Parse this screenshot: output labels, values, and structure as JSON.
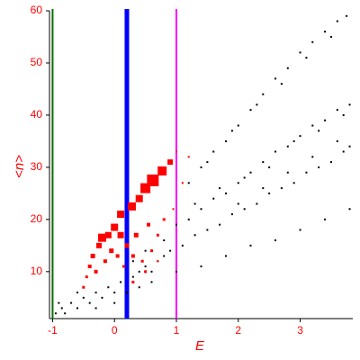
{
  "chart_data": {
    "type": "scatter",
    "xlabel": "E",
    "ylabel": "<n>",
    "xlim": [
      -1.05,
      3.85
    ],
    "ylim": [
      1,
      60
    ],
    "xticks": [
      -1,
      0,
      1,
      2,
      3
    ],
    "yticks": [
      10,
      20,
      30,
      40,
      50,
      60
    ],
    "vlines": [
      {
        "x": -1,
        "color": "#0a6e0a",
        "width": 2
      },
      {
        "x": 0.2,
        "color": "#0000ff",
        "width": 5
      },
      {
        "x": 1,
        "color": "#ff00ff",
        "width": 2
      }
    ],
    "series": [
      {
        "color": "#000000",
        "marker": "dot",
        "x": [
          1.2,
          1.4,
          1.6,
          1.8,
          2.0,
          2.2,
          2.4,
          2.6,
          2.8,
          3.0,
          3.2,
          3.4,
          3.6,
          3.75,
          1.5,
          1.9,
          2.3,
          2.7,
          3.1,
          3.5,
          1.0,
          1.2,
          1.4,
          1.6,
          1.8,
          2.0,
          2.2,
          2.4,
          2.6,
          2.8,
          3.0,
          3.2,
          3.4,
          3.6,
          3.8,
          1.3,
          1.7,
          2.1,
          2.5,
          2.9,
          3.3,
          3.7,
          0.5,
          0.8,
          1.1,
          1.3,
          1.5,
          1.7,
          1.9,
          2.1,
          2.3,
          2.5,
          2.7,
          2.9,
          3.1,
          3.3,
          3.5,
          3.7,
          3.8,
          2.0,
          2.4,
          2.8,
          3.2,
          3.6,
          0.2,
          0.6,
          1.0,
          1.4,
          1.8,
          2.2,
          2.6,
          3.0,
          3.4,
          3.8,
          -0.95,
          -0.85,
          -0.8,
          -0.7,
          -0.6,
          -0.5,
          -0.4,
          -0.3,
          -0.2,
          -0.1,
          0.0,
          0.1,
          0.3,
          0.4,
          0.6,
          0.7,
          0.9,
          0.3,
          0.5,
          -0.9,
          -0.6,
          -0.3,
          0.0,
          0.4,
          0.8
        ],
        "values": [
          27,
          30,
          33,
          35,
          38,
          41,
          44,
          47,
          49,
          52,
          54,
          56,
          58,
          59,
          31,
          37,
          42,
          46,
          51,
          55,
          19,
          20,
          22,
          24,
          25,
          27,
          29,
          31,
          33,
          34,
          36,
          38,
          39,
          41,
          42,
          23,
          26,
          28,
          30,
          35,
          37,
          40,
          11,
          13,
          15,
          17,
          18,
          19,
          21,
          22,
          23,
          25,
          26,
          27,
          29,
          30,
          31,
          33,
          34,
          23,
          26,
          29,
          32,
          35,
          6,
          8,
          10,
          11,
          13,
          15,
          16,
          18,
          20,
          22,
          2,
          3,
          2,
          4,
          3,
          5,
          4,
          6,
          5,
          7,
          6,
          8,
          9,
          7,
          10,
          12,
          14,
          12,
          14,
          4,
          6,
          3,
          4,
          10,
          16
        ]
      },
      {
        "color": "#ff0000",
        "marker": "square",
        "x": [
          -0.45,
          -0.4,
          -0.35,
          -0.3,
          -0.25,
          -0.2,
          -0.15,
          -0.1,
          -0.05,
          0.0,
          0.05,
          0.1,
          0.1,
          0.15,
          0.2,
          0.28,
          0.3,
          0.35,
          0.4,
          0.45,
          0.5,
          0.55,
          0.6,
          0.62,
          0.7,
          0.77,
          0.8,
          0.9,
          0.95,
          1.1,
          1.0,
          1.2,
          0.3,
          0.5,
          -0.5,
          0.7
        ],
        "values": [
          9,
          11,
          13,
          10,
          15,
          16.5,
          12,
          17,
          14,
          18.5,
          13,
          17,
          21,
          11,
          15,
          22.5,
          13,
          17,
          24,
          12,
          26,
          19,
          14,
          27.5,
          17,
          29.3,
          20,
          31,
          22,
          27,
          33,
          32,
          8,
          10,
          7,
          12
        ],
        "sizes": [
          1.5,
          2,
          2.5,
          2,
          3,
          4.5,
          2,
          3.5,
          2.5,
          4,
          2,
          3.5,
          4,
          1.5,
          2.5,
          4.5,
          2,
          2.5,
          4,
          1.5,
          5.5,
          2,
          1.5,
          6.5,
          1.5,
          5,
          1.5,
          3,
          1,
          1,
          1,
          1,
          1.5,
          1.5,
          1.5,
          1
        ]
      }
    ]
  }
}
